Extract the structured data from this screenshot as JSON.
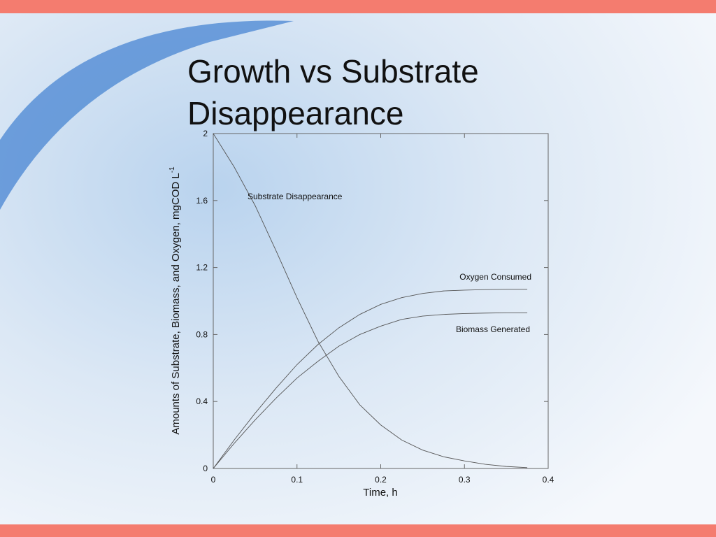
{
  "chart_data": {
    "type": "line",
    "title": "Growth vs Substrate Disappearance",
    "x_label": "Time, h",
    "y_label": "Amounts of Substrate, Biomass, and Oxygen, mgCOD L",
    "y_label_superscript": "-1",
    "x": [
      0,
      0.025,
      0.05,
      0.075,
      0.1,
      0.125,
      0.15,
      0.175,
      0.2,
      0.225,
      0.25,
      0.275,
      0.3,
      0.325,
      0.35,
      0.375
    ],
    "series": [
      {
        "name": "Substrate Disappearance",
        "color": "#555555",
        "values": [
          2.0,
          1.8,
          1.57,
          1.3,
          1.02,
          0.76,
          0.55,
          0.38,
          0.26,
          0.17,
          0.11,
          0.07,
          0.045,
          0.025,
          0.012,
          0.005
        ]
      },
      {
        "name": "Oxygen Consumed",
        "color": "#555555",
        "values": [
          0,
          0.17,
          0.33,
          0.48,
          0.62,
          0.74,
          0.84,
          0.92,
          0.98,
          1.02,
          1.045,
          1.06,
          1.065,
          1.068,
          1.07,
          1.07
        ]
      },
      {
        "name": "Biomass Generated",
        "color": "#555555",
        "values": [
          0,
          0.15,
          0.29,
          0.42,
          0.54,
          0.64,
          0.73,
          0.8,
          0.85,
          0.89,
          0.91,
          0.92,
          0.925,
          0.928,
          0.93,
          0.93
        ]
      }
    ],
    "xlim": [
      0,
      0.4
    ],
    "xticks": [
      0,
      0.1,
      0.2,
      0.3,
      0.4
    ],
    "ylim": [
      0,
      2
    ],
    "yticks": [
      0,
      0.4,
      0.8,
      1.2,
      1.6,
      2
    ]
  }
}
